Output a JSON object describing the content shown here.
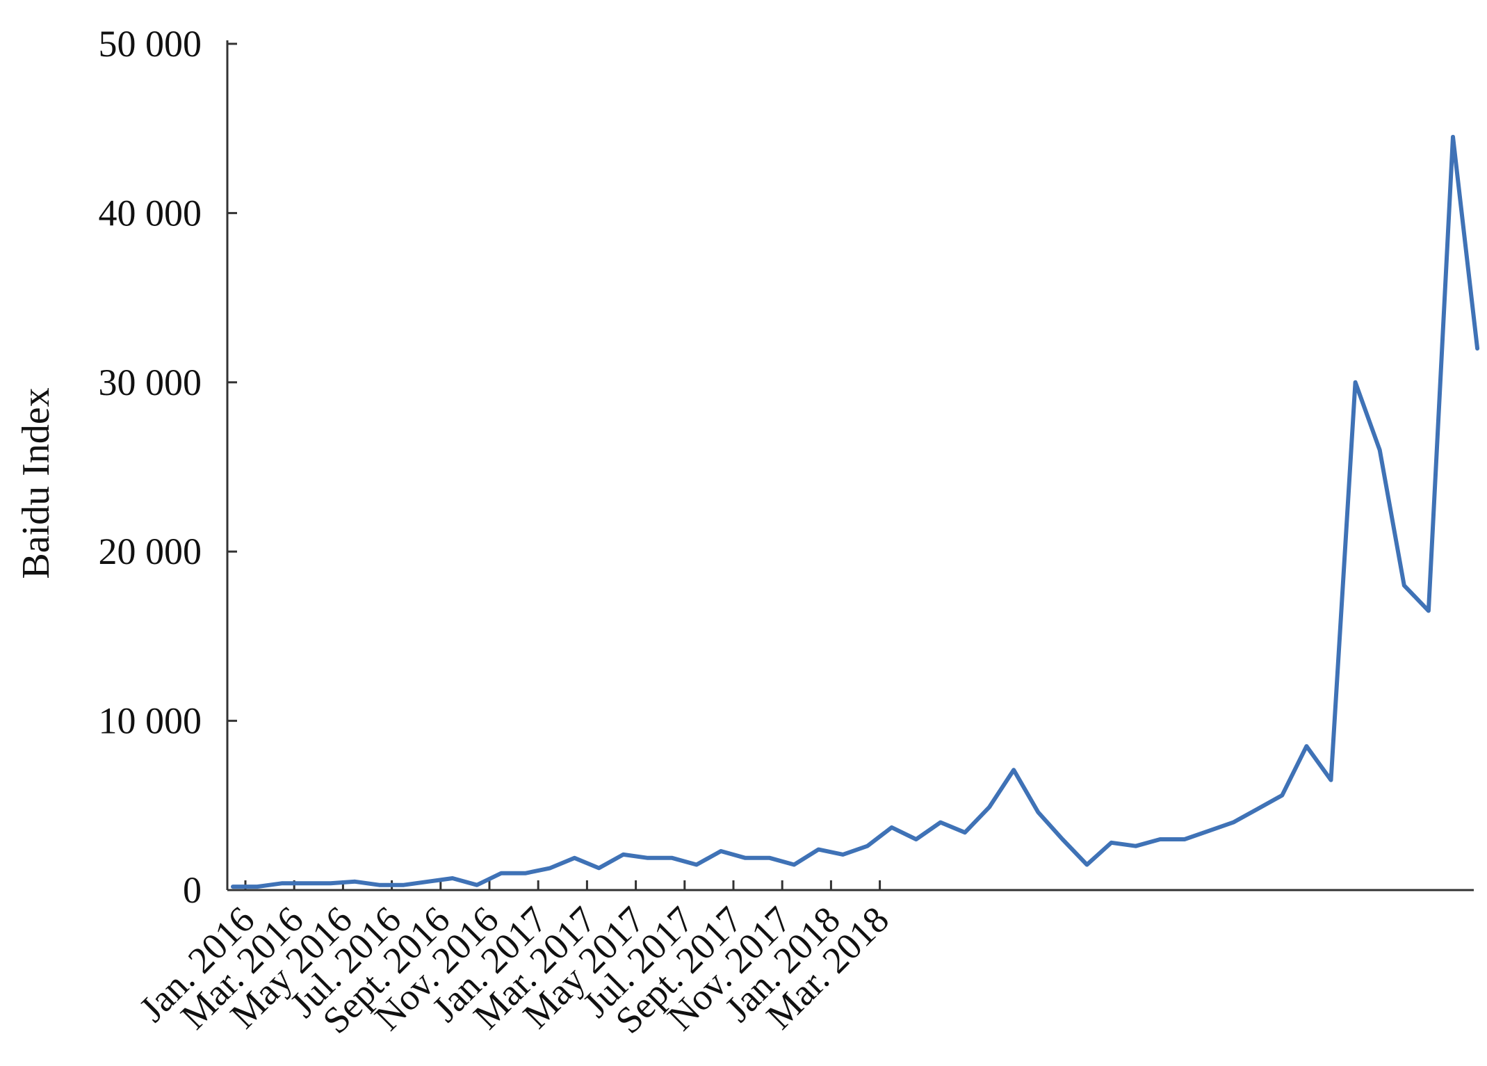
{
  "chart_data": {
    "type": "line",
    "title": "",
    "xlabel": "",
    "ylabel": "Baidu Index",
    "ylim": [
      0,
      50000
    ],
    "grid": false,
    "line_color": "#3f72b6",
    "y_ticks": [
      {
        "value": 0,
        "label": "0"
      },
      {
        "value": 10000,
        "label": "10 000"
      },
      {
        "value": 20000,
        "label": "20 000"
      },
      {
        "value": 30000,
        "label": "30 000"
      },
      {
        "value": 40000,
        "label": "40 000"
      },
      {
        "value": 50000,
        "label": "50 000"
      }
    ],
    "x_tick_labels": [
      "Jan. 2016",
      "Mar. 2016",
      "May 2016",
      "Jul. 2016",
      "Sept. 2016",
      "Nov. 2016",
      "Jan. 2017",
      "Mar. 2017",
      "May 2017",
      "Jul. 2017",
      "Sept. 2017",
      "Nov. 2017",
      "Jan. 2018",
      "Mar. 2018"
    ],
    "values": [
      200,
      200,
      400,
      400,
      400,
      500,
      300,
      300,
      500,
      700,
      300,
      1000,
      1000,
      1300,
      1900,
      1300,
      2100,
      1900,
      1900,
      1500,
      2300,
      1900,
      1900,
      1500,
      2400,
      2100,
      2600,
      3700,
      3000,
      4000,
      3400,
      4900,
      7100,
      4600,
      3000,
      1500,
      2800,
      2600,
      3000,
      3000,
      3500,
      4000,
      4800,
      5600,
      8500,
      6500,
      30000,
      26000,
      18000,
      16500,
      44500,
      32000
    ]
  }
}
